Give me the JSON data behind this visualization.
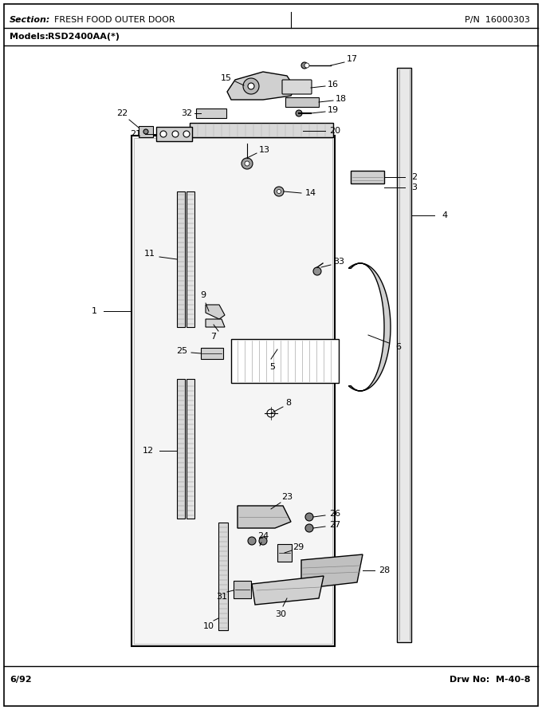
{
  "title_section": "Section:  FRESH FOOD OUTER DOOR",
  "title_pn": "P/N  16000303",
  "models": "Models:  RSD2400AA(*)",
  "footer_left": "6/92",
  "footer_right": "Drw No:  M-40-8",
  "bg_color": "#ffffff",
  "line_color": "#000000",
  "figsize": [
    6.8,
    8.9
  ],
  "dpi": 100
}
